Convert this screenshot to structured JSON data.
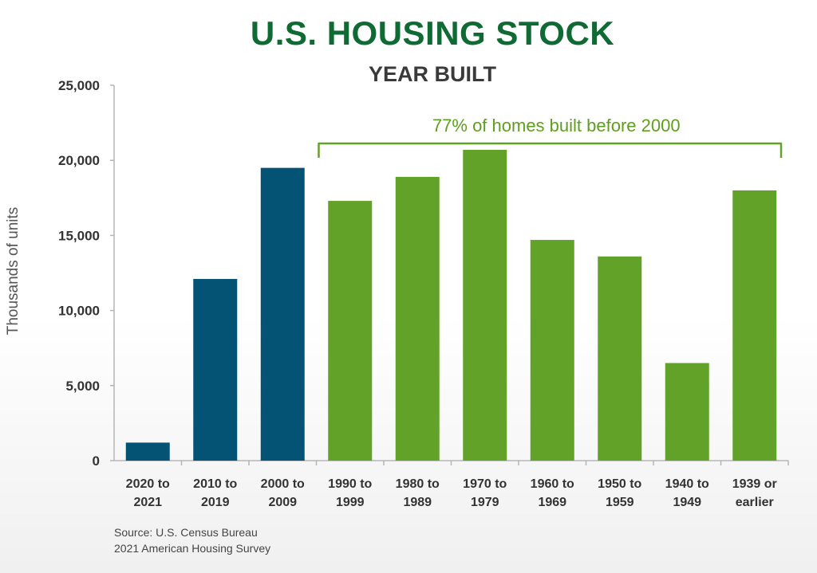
{
  "chart_data": {
    "type": "bar",
    "title": "U.S. HOUSING STOCK",
    "subtitle": "YEAR BUILT",
    "ylabel": "Thousands of units",
    "xlabel": "",
    "ylim": [
      0,
      25000
    ],
    "yticks": [
      0,
      5000,
      10000,
      15000,
      20000,
      25000
    ],
    "ytick_labels": [
      "0",
      "5,000",
      "10,000",
      "15,000",
      "20,000",
      "25,000"
    ],
    "grid": false,
    "categories": [
      [
        "2020 to",
        "2021"
      ],
      [
        "2010 to",
        "2019"
      ],
      [
        "2000 to",
        "2009"
      ],
      [
        "1990 to",
        "1999"
      ],
      [
        "1980 to",
        "1989"
      ],
      [
        "1970 to",
        "1979"
      ],
      [
        "1960 to",
        "1969"
      ],
      [
        "1950 to",
        "1959"
      ],
      [
        "1940 to",
        "1949"
      ],
      [
        "1939 or",
        "earlier"
      ]
    ],
    "values": [
      1200,
      12100,
      19500,
      17300,
      18900,
      20700,
      14700,
      13600,
      6500,
      18000
    ],
    "bar_colors": [
      "#055374",
      "#055374",
      "#055374",
      "#63a228",
      "#63a228",
      "#63a228",
      "#63a228",
      "#63a228",
      "#63a228",
      "#63a228"
    ],
    "annotation": {
      "text": "77% of homes built before 2000",
      "from_category": 3,
      "to_category": 9,
      "color": "#63a228"
    }
  },
  "source": {
    "line1": "Source: U.S. Census Bureau",
    "line2": "2021 American Housing Survey"
  },
  "colors": {
    "title": "#0f6a33",
    "pre2000": "#63a228",
    "post2000": "#055374"
  }
}
